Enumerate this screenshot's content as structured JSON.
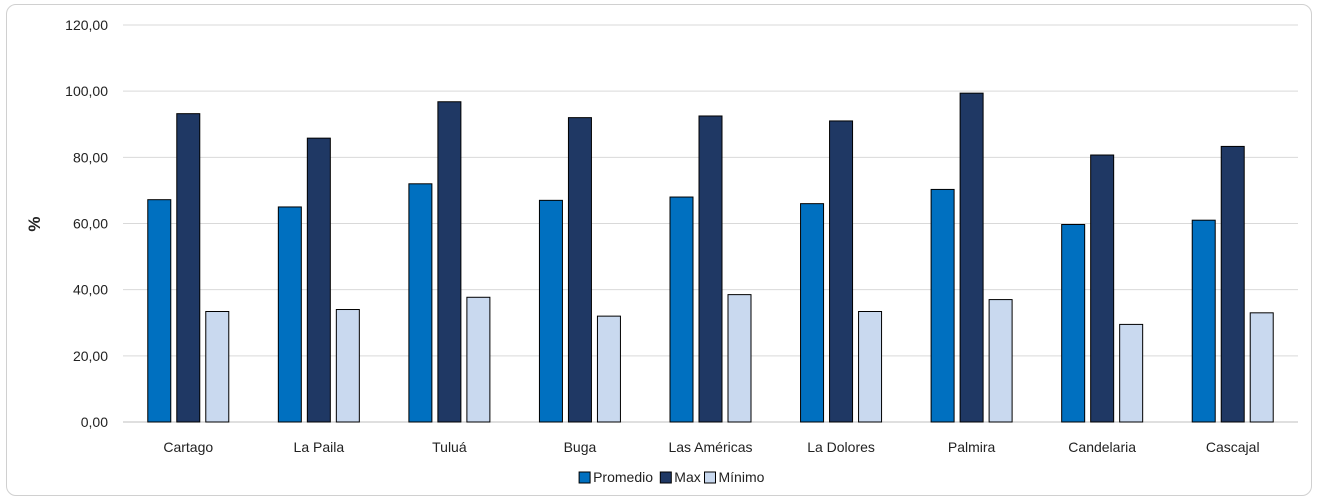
{
  "chart_data": {
    "type": "bar",
    "title": "",
    "xlabel": "",
    "ylabel": "%",
    "ylim": [
      0,
      120
    ],
    "yticks": [
      "0,00",
      "20,00",
      "40,00",
      "60,00",
      "80,00",
      "100,00",
      "120,00"
    ],
    "grid": true,
    "legend_position": "bottom",
    "categories": [
      "Cartago",
      "La Paila",
      "Tuluá",
      "Buga",
      "Las Américas",
      "La Dolores",
      "Palmira",
      "Candelaria",
      "Cascajal"
    ],
    "series": [
      {
        "name": "Promedio",
        "color": "#0070c0",
        "values": [
          67.2,
          65.0,
          72.0,
          67.0,
          68.0,
          66.0,
          70.3,
          59.7,
          61.0
        ]
      },
      {
        "name": "Max",
        "color": "#1f3864",
        "values": [
          93.2,
          85.8,
          96.8,
          92.0,
          92.5,
          91.0,
          99.4,
          80.7,
          83.3
        ]
      },
      {
        "name": "Mínimo",
        "color": "#c9d9ef",
        "values": [
          33.4,
          34.0,
          37.7,
          32.0,
          38.5,
          33.4,
          37.0,
          29.5,
          33.0
        ]
      }
    ]
  }
}
